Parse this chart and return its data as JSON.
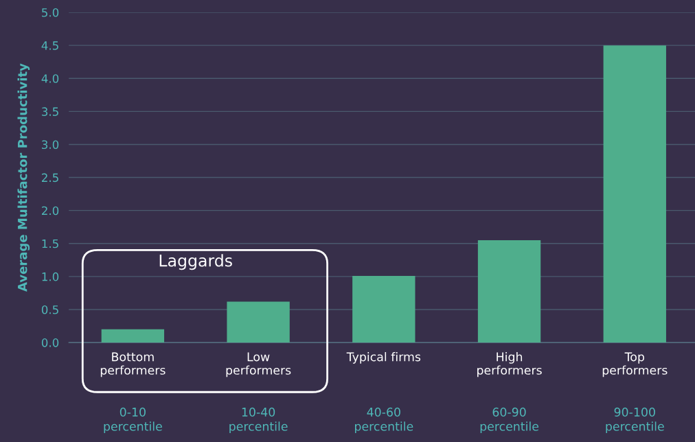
{
  "chart_data": {
    "type": "bar",
    "ylabel": "Average Multifactor Productivity",
    "categories": [
      "Bottom\nperformers",
      "Low\nperformers",
      "Typical firms",
      "High\nperformers",
      "Top\nperformers"
    ],
    "values": [
      0.2,
      0.62,
      1.01,
      1.55,
      4.5
    ],
    "color": "#4fae8c",
    "ylim": [
      0,
      5
    ],
    "yticks": [
      {
        "value": 0,
        "label": "0.0"
      },
      {
        "value": 0.5,
        "label": "0.5"
      },
      {
        "value": 1,
        "label": "1.0"
      },
      {
        "value": 1.5,
        "label": "1.5"
      },
      {
        "value": 2,
        "label": "2.0"
      },
      {
        "value": 2.5,
        "label": "2.5"
      },
      {
        "value": 3,
        "label": "3.0"
      },
      {
        "value": 3.5,
        "label": "3.5"
      },
      {
        "value": 4,
        "label": "4.0"
      },
      {
        "value": 4.5,
        "label": "4.5"
      },
      {
        "value": 5,
        "label": "5.0"
      }
    ],
    "grid": "y",
    "annotations": [
      "Laggards",
      "0-10\npercentile",
      "10-40\npercentile",
      "40-60\npercentile",
      "60-90\npercentile",
      "90-100\npercentile"
    ]
  }
}
